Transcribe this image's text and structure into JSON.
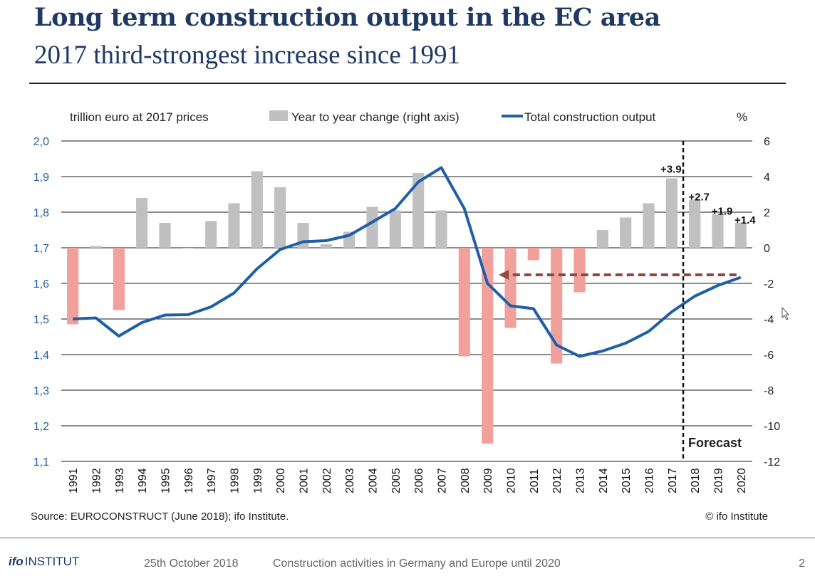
{
  "title": "Long term construction output in the EC area",
  "subtitle": "2017 third-strongest increase since 1991",
  "chart_data": {
    "type": "bar+line",
    "left_axis_label": "trillion euro at 2017 prices",
    "right_axis_label": "%",
    "legend": {
      "bars": "Year to year change (right axis)",
      "line": "Total construction output"
    },
    "categories": [
      "1991",
      "1992",
      "1993",
      "1994",
      "1995",
      "1996",
      "1997",
      "1998",
      "1999",
      "2000",
      "2001",
      "2002",
      "2003",
      "2004",
      "2005",
      "2006",
      "2007",
      "2008",
      "2009",
      "2010",
      "2011",
      "2012",
      "2013",
      "2014",
      "2015",
      "2016",
      "2017",
      "2018",
      "2019",
      "2020"
    ],
    "left_ylim": [
      1.1,
      2.0
    ],
    "left_ticks": [
      "2,0",
      "1,9",
      "1,8",
      "1,7",
      "1,6",
      "1,5",
      "1,4",
      "1,3",
      "1,2",
      "1,1"
    ],
    "right_ylim": [
      -12,
      6
    ],
    "right_ticks": [
      "6",
      "4",
      "2",
      "0",
      "-2",
      "-4",
      "-6",
      "-8",
      "-10",
      "-12"
    ],
    "series": [
      {
        "name": "Year to year change (right axis)",
        "kind": "bar",
        "axis": "right",
        "values": [
          -4.3,
          0.1,
          -3.5,
          2.8,
          1.4,
          0.0,
          1.5,
          2.5,
          4.3,
          3.4,
          1.4,
          0.2,
          0.9,
          2.3,
          2.1,
          4.2,
          2.1,
          -6.1,
          -11.0,
          -4.5,
          -0.7,
          -6.5,
          -2.5,
          1.0,
          1.7,
          2.5,
          3.9,
          2.7,
          1.9,
          1.4
        ],
        "positive_color": "#c0c0c0",
        "negative_color": "#f2a09c"
      },
      {
        "name": "Total construction output",
        "kind": "line",
        "axis": "left",
        "values": [
          1.5,
          1.503,
          1.452,
          1.49,
          1.511,
          1.512,
          1.534,
          1.573,
          1.641,
          1.695,
          1.717,
          1.72,
          1.735,
          1.772,
          1.81,
          1.885,
          1.925,
          1.81,
          1.6,
          1.537,
          1.529,
          1.427,
          1.395,
          1.41,
          1.432,
          1.465,
          1.52,
          1.564,
          1.594,
          1.617
        ],
        "color": "#1f5fa6"
      }
    ],
    "bar_labels": [
      {
        "category": "2017",
        "text": "+3.9"
      },
      {
        "category": "2018",
        "text": "+2.7"
      },
      {
        "category": "2019",
        "text": "+1.9"
      },
      {
        "category": "2020",
        "text": "+1.4"
      }
    ],
    "forecast_from": "2017",
    "forecast_label": "Forecast",
    "arrow": {
      "from_category": "2020",
      "to_category": "2009",
      "level": 1.624,
      "color": "#8b4a42"
    },
    "source": "Source: EUROCONSTRUCT (June 2018); ifo Institute.",
    "copyright": "© ifo Institute",
    "grid": true
  },
  "footer": {
    "logo_mark": "ifo",
    "logo_text": "INSTITUT",
    "date": "25th October 2018",
    "topic": "Construction activities in Germany and Europe until 2020",
    "page": "2"
  }
}
